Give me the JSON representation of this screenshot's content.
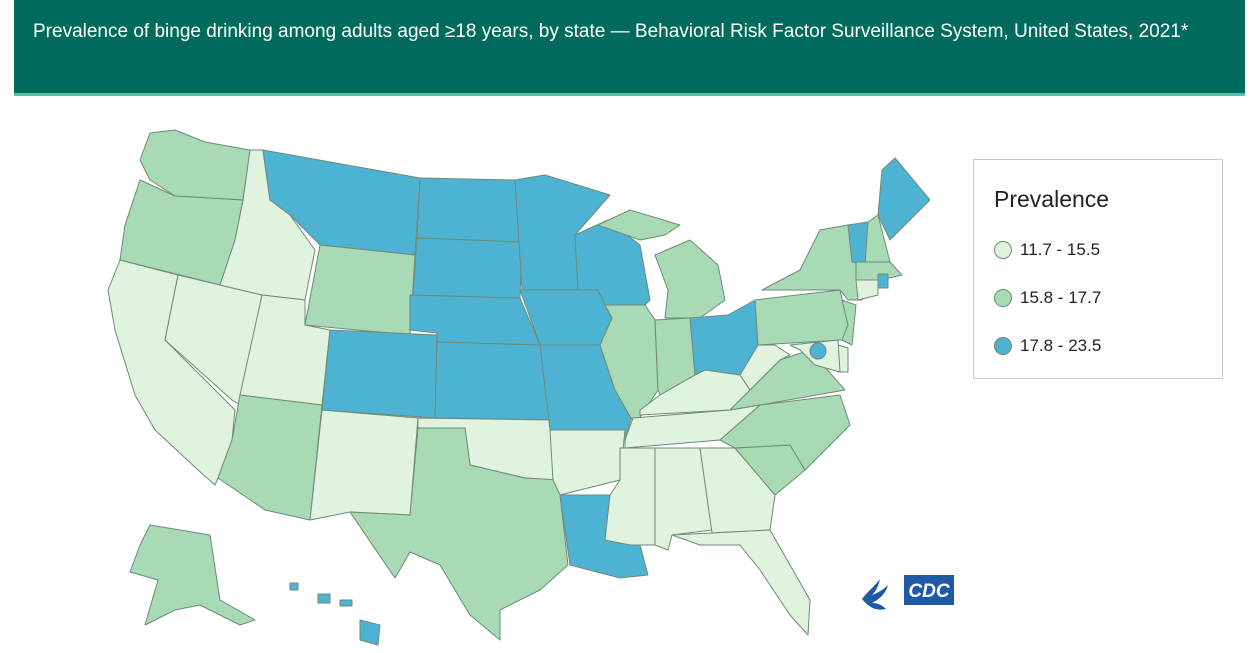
{
  "header": {
    "title": "Prevalence of binge drinking among adults aged ≥18 years, by state — Behavioral Risk Factor Surveillance System, United States, 2021*"
  },
  "legend": {
    "title": "Prevalence",
    "classes": [
      {
        "label": "11.7 - 15.5",
        "color": "#e0f3df"
      },
      {
        "label": "15.8 - 17.7",
        "color": "#a8dbb5"
      },
      {
        "label": "17.8 - 23.5",
        "color": "#4eb3d3"
      }
    ]
  },
  "map": {
    "class_of_state": {
      "WA": 2,
      "OR": 2,
      "CA": 1,
      "NV": 1,
      "ID": 1,
      "MT": 3,
      "WY": 2,
      "UT": 1,
      "AZ": 2,
      "CO": 3,
      "NM": 1,
      "ND": 3,
      "SD": 3,
      "NE": 3,
      "KS": 3,
      "OK": 1,
      "TX": 2,
      "MN": 3,
      "IA": 3,
      "MO": 3,
      "AR": 1,
      "LA": 3,
      "WI": 3,
      "IL": 2,
      "MI": 2,
      "IN": 2,
      "OH": 3,
      "KY": 1,
      "TN": 1,
      "MS": 1,
      "AL": 1,
      "GA": 1,
      "FL": 1,
      "SC": 2,
      "NC": 2,
      "VA": 2,
      "WV": 1,
      "PA": 2,
      "NY": 2,
      "VT": 3,
      "NH": 2,
      "ME": 3,
      "MA": 2,
      "RI": 3,
      "CT": 1,
      "NJ": 2,
      "DE": 1,
      "MD": 1,
      "DC": 3,
      "AK": 2,
      "HI": 3
    }
  },
  "logo": {
    "text": "CDC"
  }
}
